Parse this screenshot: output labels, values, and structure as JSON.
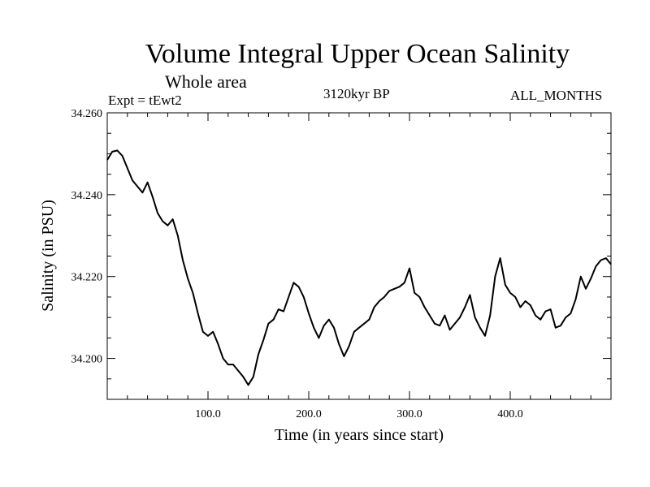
{
  "header": {
    "title": "Volume Integral Upper Ocean Salinity",
    "subtitle": "Whole area",
    "experiment": "Expt = tEwt2",
    "period": "3120kyr BP",
    "months": "ALL_MONTHS"
  },
  "chart_data": {
    "type": "line",
    "title": "Volume Integral Upper Ocean Salinity",
    "xlabel": "Time (in years since start)",
    "ylabel": "Salinity (in PSU)",
    "xlim": [
      0,
      500
    ],
    "ylim": [
      34.19,
      34.26
    ],
    "x_ticks": [
      {
        "value": 100,
        "label": "100.0"
      },
      {
        "value": 200,
        "label": "200.0"
      },
      {
        "value": 300,
        "label": "300.0"
      },
      {
        "value": 400,
        "label": "400.0"
      }
    ],
    "y_ticks": [
      {
        "value": 34.2,
        "label": "34.200"
      },
      {
        "value": 34.22,
        "label": "34.220"
      },
      {
        "value": 34.24,
        "label": "34.240"
      },
      {
        "value": 34.26,
        "label": "34.260"
      }
    ],
    "grid": false,
    "series": [
      {
        "name": "Salinity",
        "color": "#000000",
        "x": [
          0,
          5,
          10,
          15,
          20,
          25,
          30,
          35,
          40,
          45,
          50,
          55,
          60,
          65,
          70,
          75,
          80,
          85,
          90,
          95,
          100,
          105,
          110,
          115,
          120,
          125,
          130,
          135,
          140,
          145,
          150,
          155,
          160,
          165,
          170,
          175,
          180,
          185,
          190,
          195,
          200,
          205,
          210,
          215,
          220,
          225,
          230,
          235,
          240,
          245,
          250,
          255,
          260,
          265,
          270,
          275,
          280,
          285,
          290,
          295,
          300,
          305,
          310,
          315,
          320,
          325,
          330,
          335,
          340,
          345,
          350,
          355,
          360,
          365,
          370,
          375,
          380,
          385,
          390,
          395,
          400,
          405,
          410,
          415,
          420,
          425,
          430,
          435,
          440,
          445,
          450,
          455,
          460,
          465,
          470,
          475,
          480,
          485,
          490,
          495,
          500
        ],
        "values": [
          34.2485,
          34.2505,
          34.2508,
          34.2495,
          34.2465,
          34.2435,
          34.242,
          34.2405,
          34.243,
          34.2395,
          34.2355,
          34.2335,
          34.2325,
          34.234,
          34.23,
          34.224,
          34.2195,
          34.216,
          34.211,
          34.2065,
          34.2055,
          34.2065,
          34.2035,
          34.2,
          34.1985,
          34.1985,
          34.197,
          34.1955,
          34.1935,
          34.1955,
          34.201,
          34.2045,
          34.2085,
          34.2095,
          34.212,
          34.2115,
          34.215,
          34.2185,
          34.2175,
          34.215,
          34.211,
          34.2075,
          34.205,
          34.208,
          34.2095,
          34.2075,
          34.2035,
          34.2005,
          34.203,
          34.2065,
          34.2075,
          34.2085,
          34.2095,
          34.2125,
          34.214,
          34.215,
          34.2165,
          34.217,
          34.2175,
          34.2185,
          34.222,
          34.216,
          34.215,
          34.2125,
          34.2105,
          34.2085,
          34.208,
          34.2105,
          34.207,
          34.2085,
          34.21,
          34.2125,
          34.2155,
          34.21,
          34.2075,
          34.2055,
          34.2105,
          34.22,
          34.2245,
          34.218,
          34.216,
          34.215,
          34.2125,
          34.214,
          34.213,
          34.2105,
          34.2095,
          34.2115,
          34.212,
          34.2075,
          34.208,
          34.21,
          34.211,
          34.2145,
          34.22,
          34.217,
          34.2195,
          34.2225,
          34.224,
          34.2245,
          34.223
        ]
      }
    ]
  }
}
